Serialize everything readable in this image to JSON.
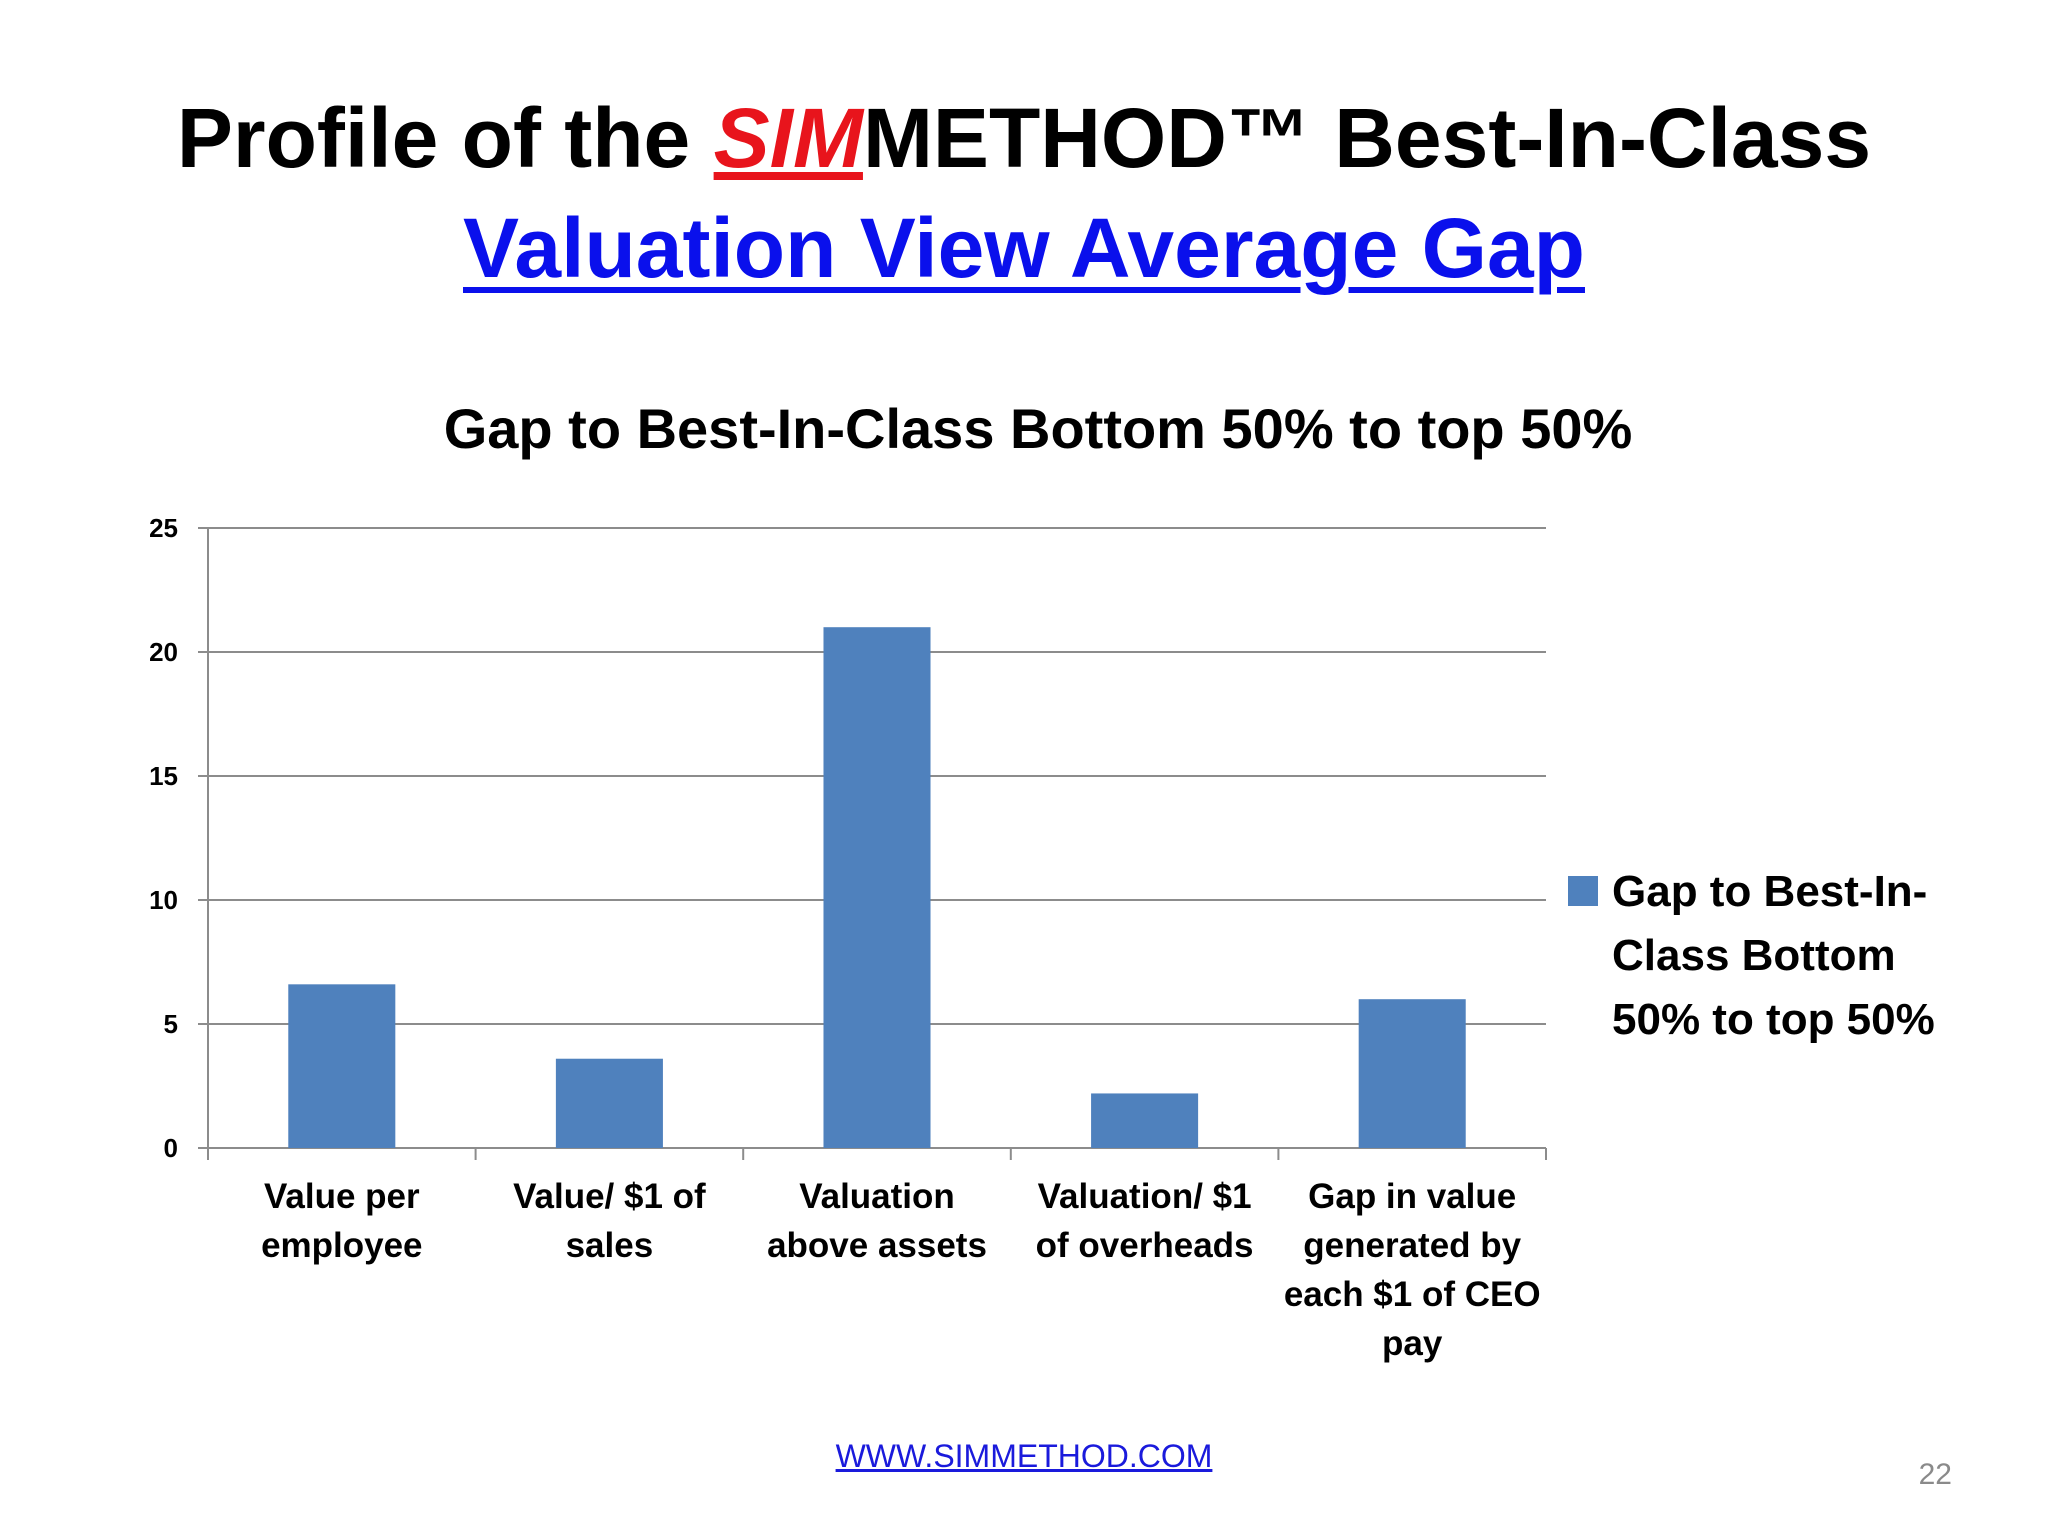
{
  "slide": {
    "title_prefix": "Profile of the ",
    "title_brand": "SIM",
    "title_suffix": "METHOD™ Best-In-Class",
    "subtitle": "Valuation View Average Gap",
    "footer_link": "WWW.SIMMETHOD.COM",
    "page_number": "22"
  },
  "colors": {
    "bar": "#4f81bd",
    "brand_red": "#e8141c",
    "link_blue": "#0a10ec"
  },
  "chart_data": {
    "type": "bar",
    "title": "Gap to Best-In-Class Bottom 50% to top 50%",
    "categories": [
      [
        "Value per",
        "employee"
      ],
      [
        "Value/ $1 of",
        "sales"
      ],
      [
        "Valuation",
        "above assets"
      ],
      [
        "Valuation/ $1",
        "of overheads"
      ],
      [
        "Gap in value",
        "generated by",
        "each $1 of CEO",
        "pay"
      ]
    ],
    "series": [
      {
        "name": "Gap to Best-In-Class Bottom 50% to top 50%",
        "values": [
          6.6,
          3.6,
          21.0,
          2.2,
          6.0
        ]
      }
    ],
    "legend_lines": [
      "Gap to Best-In-",
      "Class Bottom",
      "50% to top 50%"
    ],
    "yticks": [
      0,
      5,
      10,
      15,
      20,
      25
    ],
    "ylim": [
      0,
      25
    ],
    "grid": true,
    "legend_position": "right"
  }
}
